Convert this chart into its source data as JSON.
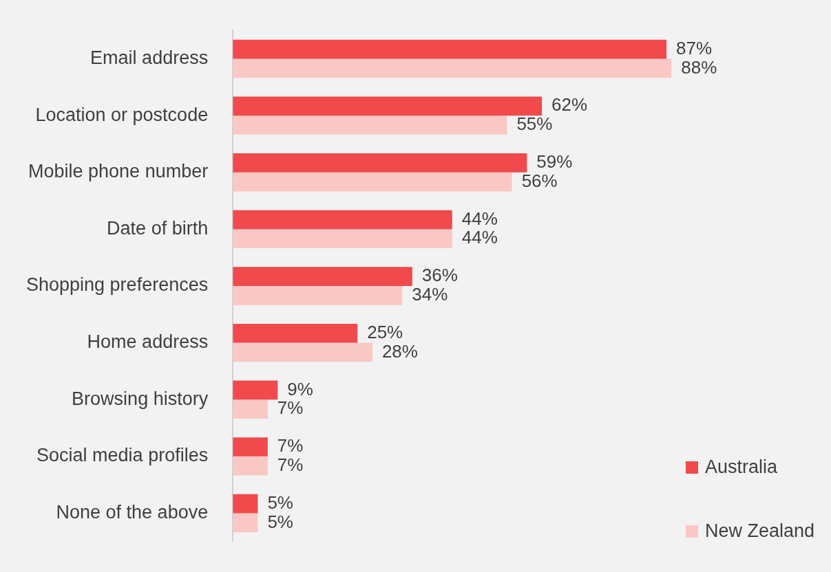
{
  "chart_data": {
    "type": "bar",
    "orientation": "horizontal",
    "categories": [
      "Email address",
      "Location or postcode",
      "Mobile phone number",
      "Date of birth",
      "Shopping preferences",
      "Home address",
      "Browsing history",
      "Social media profiles",
      "None of the above"
    ],
    "series": [
      {
        "name": "Australia",
        "color": "#f04a4c",
        "values": [
          87,
          62,
          59,
          44,
          36,
          25,
          9,
          7,
          5
        ],
        "value_labels": [
          "87%",
          "62%",
          "59%",
          "44%",
          "36%",
          "25%",
          "9%",
          "7%",
          "5%"
        ]
      },
      {
        "name": "New Zealand",
        "color": "#f9c8c5",
        "values": [
          88,
          55,
          56,
          44,
          34,
          28,
          7,
          7,
          5
        ],
        "value_labels": [
          "88%",
          "55%",
          "56%",
          "44%",
          "34%",
          "28%",
          "7%",
          "7%",
          "5%"
        ]
      }
    ],
    "legend": "bottom right"
  }
}
